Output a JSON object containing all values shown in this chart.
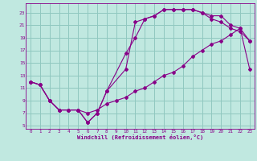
{
  "xlabel": "Windchill (Refroidissement éolien,°C)",
  "bg_color": "#c0e8e0",
  "grid_color": "#90c8c0",
  "line_color": "#880088",
  "xlim": [
    -0.5,
    23.5
  ],
  "ylim": [
    4.5,
    24.5
  ],
  "xticks": [
    0,
    1,
    2,
    3,
    4,
    5,
    6,
    7,
    8,
    9,
    10,
    11,
    12,
    13,
    14,
    15,
    16,
    17,
    18,
    19,
    20,
    21,
    22,
    23
  ],
  "yticks": [
    5,
    7,
    9,
    11,
    13,
    15,
    17,
    19,
    21,
    23
  ],
  "curve1_x": [
    0,
    1,
    2,
    3,
    4,
    5,
    6,
    7,
    8,
    10,
    11,
    12,
    13,
    14,
    15,
    16,
    17,
    18,
    19,
    20,
    21,
    22,
    23
  ],
  "curve1_y": [
    12,
    11.5,
    9,
    7.5,
    7.5,
    7.5,
    5.5,
    7,
    10.5,
    14,
    21.5,
    22,
    22.5,
    23.5,
    23.5,
    23.5,
    23.5,
    23,
    22.5,
    22.5,
    21,
    20.5,
    18.5
  ],
  "curve2_x": [
    0,
    1,
    2,
    3,
    4,
    5,
    6,
    7,
    8,
    10,
    11,
    12,
    13,
    14,
    15,
    16,
    17,
    18,
    19,
    20,
    21,
    22,
    23
  ],
  "curve2_y": [
    12,
    11.5,
    9,
    7.5,
    7.5,
    7.5,
    5.5,
    7,
    10.5,
    16.5,
    19,
    22,
    22.5,
    23.5,
    23.5,
    23.5,
    23.5,
    23,
    22,
    21.5,
    20.5,
    20,
    18.5
  ],
  "curve3_x": [
    0,
    1,
    2,
    3,
    4,
    5,
    6,
    7,
    8,
    9,
    10,
    11,
    12,
    13,
    14,
    15,
    16,
    17,
    18,
    19,
    20,
    21,
    22,
    23
  ],
  "curve3_y": [
    12,
    11.5,
    9,
    7.5,
    7.5,
    7.5,
    7,
    7.5,
    8.5,
    9,
    9.5,
    10.5,
    11,
    12,
    13,
    13.5,
    14.5,
    16,
    17,
    18,
    18.5,
    19.5,
    20.5,
    14
  ]
}
